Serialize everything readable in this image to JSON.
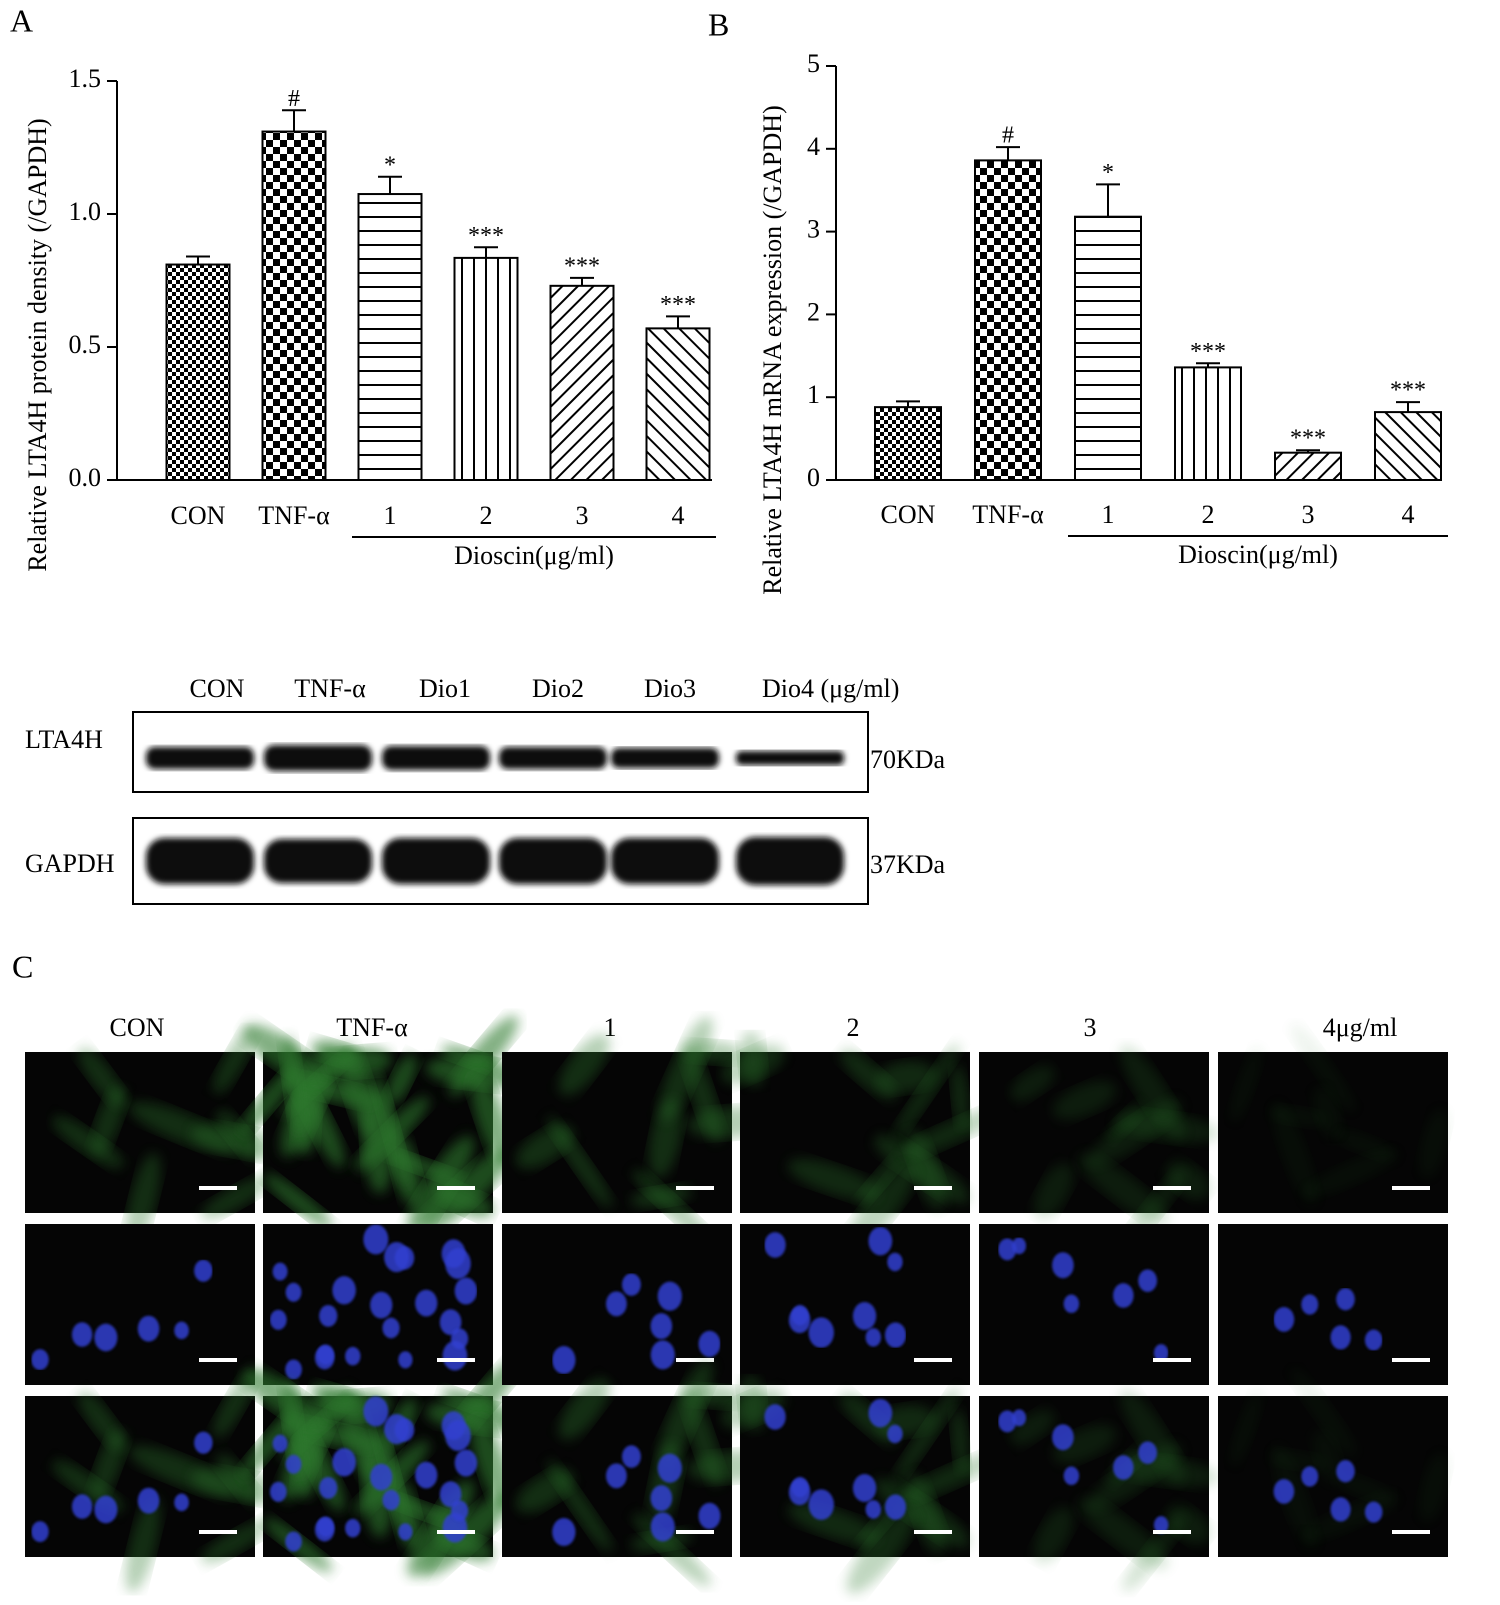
{
  "chart_data": [
    {
      "type": "bar",
      "panel": "A",
      "ylabel": "Relative LTA4H protein density (/GAPDH)",
      "categories": [
        "CON",
        "TNF-α",
        "1",
        "2",
        "3",
        "4"
      ],
      "values": [
        0.81,
        1.31,
        1.075,
        0.835,
        0.73,
        0.57
      ],
      "errors": [
        0.03,
        0.08,
        0.065,
        0.04,
        0.03,
        0.045
      ],
      "annotations": [
        null,
        "#",
        "*",
        "***",
        "***",
        "***"
      ],
      "group_label": "Dioscin(μg/ml)",
      "patterns": [
        "checker-fine",
        "checker",
        "horizontal",
        "vertical",
        "diagonal",
        "back-diagonal"
      ],
      "color": "#000000",
      "ylim": [
        0,
        1.5
      ],
      "yticks": [
        {
          "value": 0,
          "label": "0.0"
        },
        0.5,
        {
          "value": 1,
          "label": "1.0"
        },
        1.5
      ]
    },
    {
      "type": "bar",
      "panel": "B",
      "ylabel": "Relative LTA4H mRNA expression (/GAPDH)",
      "categories": [
        "CON",
        "TNF-α",
        "1",
        "2",
        "3",
        "4"
      ],
      "values": [
        0.88,
        3.86,
        3.18,
        1.36,
        0.33,
        0.82
      ],
      "errors": [
        0.07,
        0.16,
        0.39,
        0.05,
        0.03,
        0.12
      ],
      "annotations": [
        null,
        "#",
        "*",
        "***",
        "***",
        "***"
      ],
      "group_label": "Dioscin(μg/ml)",
      "patterns": [
        "checker-fine",
        "checker",
        "horizontal",
        "vertical",
        "diagonal",
        "back-diagonal"
      ],
      "color": "#000000",
      "ylim": [
        0,
        5
      ],
      "yticks": [
        0,
        1,
        2,
        3,
        4,
        5
      ]
    }
  ],
  "blot": {
    "lanes": [
      "CON",
      "TNF-α",
      "Dio1",
      "Dio2",
      "Dio3",
      "Dio4 (μg/ml)"
    ],
    "rows": [
      {
        "label": "LTA4H",
        "size": "70KDa"
      },
      {
        "label": "GAPDH",
        "size": "37KDa"
      }
    ]
  },
  "imaging": {
    "panel": "C",
    "columns": [
      "CON",
      "TNF-α",
      "1",
      "2",
      "3",
      "4μg/ml"
    ]
  }
}
